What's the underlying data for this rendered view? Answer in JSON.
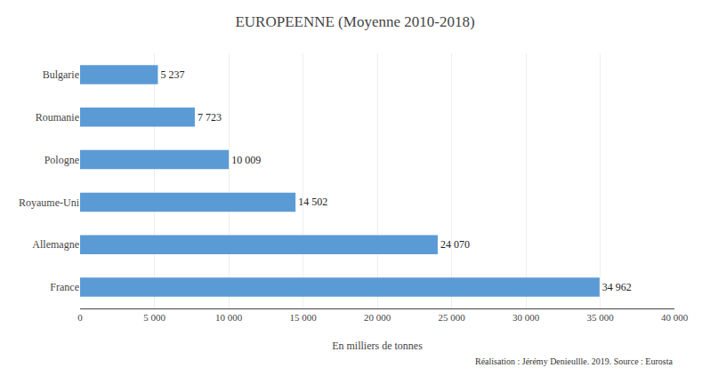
{
  "chart_data": {
    "type": "bar",
    "orientation": "horizontal",
    "title": "EUROPEENNE (Moyenne 2010-2018)",
    "xlabel": "En milliers de tonnes",
    "categories": [
      "France",
      "Allemagne",
      "Royaume-Uni",
      "Pologne",
      "Roumanie",
      "Bulgarie"
    ],
    "values": [
      34962,
      24070,
      14502,
      10009,
      7723,
      5237
    ],
    "value_labels": [
      "34 962",
      "24 070",
      "14 502",
      "10 009",
      "7 723",
      "5 237"
    ],
    "data_labels": true,
    "color": "#5B9BD5",
    "xlim": [
      0,
      40000
    ],
    "xticks": [
      0,
      {
        "value": 5000,
        "label": "5 000"
      },
      {
        "value": 10000,
        "label": "10 000"
      },
      {
        "value": 15000,
        "label": "15 000"
      },
      {
        "value": 20000,
        "label": "20 000"
      },
      {
        "value": 25000,
        "label": "25 000"
      },
      {
        "value": 30000,
        "label": "30 000"
      },
      {
        "value": 35000,
        "label": "35 000"
      },
      {
        "value": 40000,
        "label": "40 000"
      }
    ],
    "grid": true,
    "annotations": [
      "Réalisation : Jérémy Denieullle. 2019. Source : Eurosta"
    ]
  }
}
